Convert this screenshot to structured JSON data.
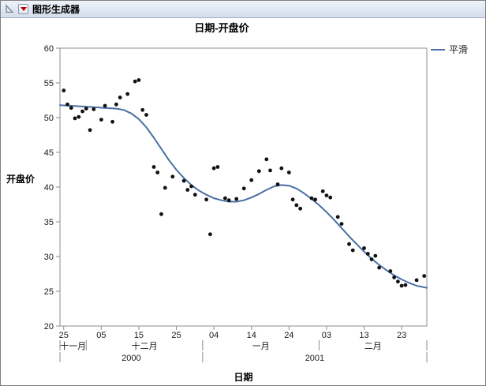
{
  "window": {
    "title": "图形生成器"
  },
  "chart_data": {
    "type": "scatter",
    "title": "日期-开盘价",
    "xlabel": "日期",
    "ylabel": "开盘价",
    "legend": [
      {
        "label": "平滑",
        "color": "#4a6fa5"
      }
    ],
    "point_color": "#111111",
    "ylim": [
      20,
      60
    ],
    "yticks": [
      20,
      25,
      30,
      35,
      40,
      45,
      50,
      55,
      60
    ],
    "x_unit": "days since 2000-11-25",
    "xlim": [
      -1,
      96.7
    ],
    "xticks": [
      {
        "day": 0,
        "label": "25"
      },
      {
        "day": 10,
        "label": "05"
      },
      {
        "day": 20,
        "label": "15"
      },
      {
        "day": 30,
        "label": "25"
      },
      {
        "day": 40,
        "label": "04"
      },
      {
        "day": 50,
        "label": "14"
      },
      {
        "day": 60,
        "label": "24"
      },
      {
        "day": 70,
        "label": "03"
      },
      {
        "day": 80,
        "label": "13"
      },
      {
        "day": 90,
        "label": "23"
      }
    ],
    "month_bands": [
      {
        "label": "十一月",
        "start": -1,
        "end": 6
      },
      {
        "label": "十二月",
        "start": 6,
        "end": 37
      },
      {
        "label": "一月",
        "start": 37,
        "end": 68
      },
      {
        "label": "二月",
        "start": 68,
        "end": 96.7
      }
    ],
    "year_bands": [
      {
        "label": "2000",
        "start": -1,
        "end": 37
      },
      {
        "label": "2001",
        "start": 37,
        "end": 96.7
      }
    ],
    "points": [
      [
        0,
        53.9
      ],
      [
        1,
        51.9
      ],
      [
        2,
        51.4
      ],
      [
        3,
        49.9
      ],
      [
        4,
        50.1
      ],
      [
        5,
        50.9
      ],
      [
        6,
        51.3
      ],
      [
        7,
        48.2
      ],
      [
        8,
        51.2
      ],
      [
        10,
        49.7
      ],
      [
        11,
        51.7
      ],
      [
        13,
        49.4
      ],
      [
        14,
        51.9
      ],
      [
        15,
        52.9
      ],
      [
        17,
        53.4
      ],
      [
        19,
        55.2
      ],
      [
        20,
        55.4
      ],
      [
        21,
        51.1
      ],
      [
        22,
        50.4
      ],
      [
        24,
        42.9
      ],
      [
        25,
        42.1
      ],
      [
        26,
        36.1
      ],
      [
        27,
        39.9
      ],
      [
        29,
        41.5
      ],
      [
        32,
        40.9
      ],
      [
        33,
        39.6
      ],
      [
        34,
        40.1
      ],
      [
        35,
        38.9
      ],
      [
        38,
        38.2
      ],
      [
        39,
        33.2
      ],
      [
        40,
        42.7
      ],
      [
        41,
        42.9
      ],
      [
        43,
        38.4
      ],
      [
        44,
        38.1
      ],
      [
        46,
        38.3
      ],
      [
        48,
        39.8
      ],
      [
        50,
        41.0
      ],
      [
        52,
        42.3
      ],
      [
        54,
        44.0
      ],
      [
        55,
        42.4
      ],
      [
        57,
        40.4
      ],
      [
        58,
        42.7
      ],
      [
        60,
        42.1
      ],
      [
        61,
        38.2
      ],
      [
        62,
        37.4
      ],
      [
        63,
        36.9
      ],
      [
        66,
        38.4
      ],
      [
        67,
        38.2
      ],
      [
        69,
        39.4
      ],
      [
        70,
        38.8
      ],
      [
        71,
        38.5
      ],
      [
        73,
        35.7
      ],
      [
        74,
        34.7
      ],
      [
        76,
        31.8
      ],
      [
        77,
        30.9
      ],
      [
        80,
        31.2
      ],
      [
        81,
        30.4
      ],
      [
        82,
        29.6
      ],
      [
        83,
        30.1
      ],
      [
        84,
        28.4
      ],
      [
        87,
        27.9
      ],
      [
        88,
        27.0
      ],
      [
        89,
        26.4
      ],
      [
        90,
        25.8
      ],
      [
        91,
        25.9
      ],
      [
        94,
        26.6
      ],
      [
        96,
        27.2
      ]
    ],
    "smooth": [
      [
        -1,
        51.8
      ],
      [
        2,
        51.7
      ],
      [
        5,
        51.6
      ],
      [
        8,
        51.5
      ],
      [
        11,
        51.4
      ],
      [
        14,
        51.3
      ],
      [
        16,
        51.1
      ],
      [
        18,
        50.6
      ],
      [
        20,
        49.8
      ],
      [
        22,
        48.6
      ],
      [
        24,
        47.1
      ],
      [
        26,
        45.5
      ],
      [
        28,
        43.9
      ],
      [
        30,
        42.5
      ],
      [
        32,
        41.3
      ],
      [
        34,
        40.3
      ],
      [
        36,
        39.5
      ],
      [
        38,
        38.9
      ],
      [
        40,
        38.4
      ],
      [
        42,
        38.1
      ],
      [
        44,
        37.9
      ],
      [
        46,
        37.9
      ],
      [
        48,
        38.1
      ],
      [
        50,
        38.5
      ],
      [
        52,
        39.0
      ],
      [
        54,
        39.6
      ],
      [
        56,
        40.1
      ],
      [
        58,
        40.3
      ],
      [
        60,
        40.2
      ],
      [
        62,
        39.8
      ],
      [
        64,
        39.1
      ],
      [
        66,
        38.3
      ],
      [
        68,
        37.4
      ],
      [
        70,
        36.4
      ],
      [
        72,
        35.3
      ],
      [
        74,
        34.1
      ],
      [
        76,
        32.9
      ],
      [
        78,
        31.8
      ],
      [
        80,
        30.7
      ],
      [
        82,
        29.7
      ],
      [
        84,
        28.8
      ],
      [
        86,
        28.0
      ],
      [
        88,
        27.3
      ],
      [
        90,
        26.7
      ],
      [
        92,
        26.2
      ],
      [
        94,
        25.8
      ],
      [
        96.7,
        25.5
      ]
    ]
  }
}
